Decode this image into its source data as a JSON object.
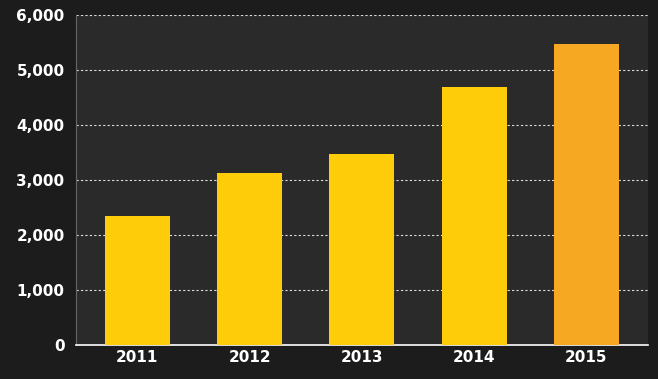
{
  "chart_data": {
    "type": "bar",
    "categories": [
      "2011",
      "2012",
      "2013",
      "2014",
      "2015"
    ],
    "values": [
      2350,
      3130,
      3480,
      4700,
      5480
    ],
    "colors": [
      "#FFCC0A",
      "#FFCC0A",
      "#FFCC0A",
      "#FFCC0A",
      "#F7A823"
    ],
    "ylim": [
      0,
      6000
    ],
    "yticks": [
      0,
      {
        "value": 1000,
        "label": "1,000"
      },
      {
        "value": 2000,
        "label": "2,000"
      },
      {
        "value": 3000,
        "label": "3,000"
      },
      {
        "value": 4000,
        "label": "4,000"
      },
      {
        "value": 5000,
        "label": "5,000"
      },
      {
        "value": 6000,
        "label": "6,000"
      }
    ],
    "grid": true
  }
}
